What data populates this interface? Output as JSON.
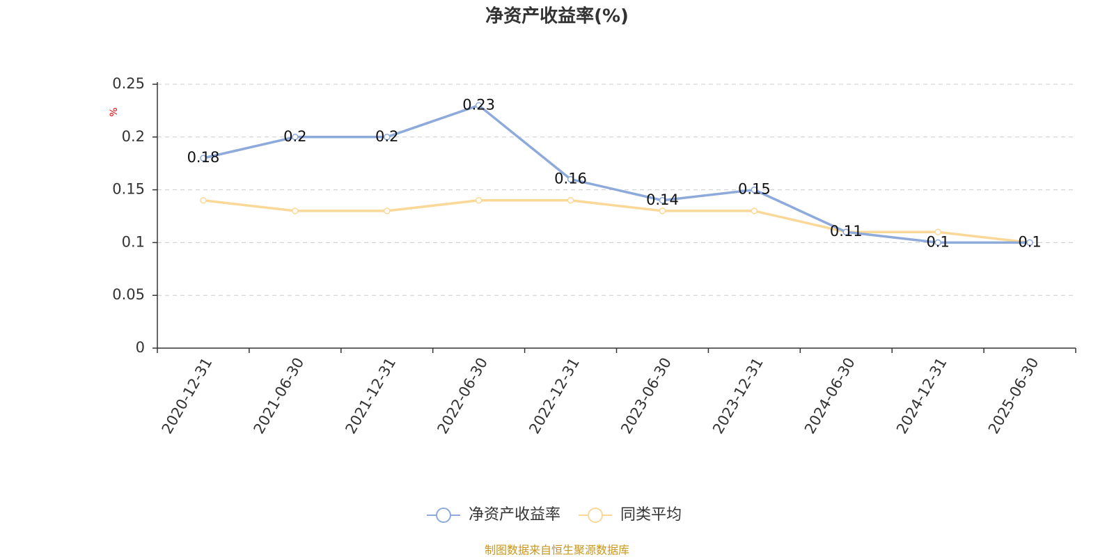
{
  "chart_data": {
    "type": "line",
    "title": "净资产收益率(%)",
    "y_unit": "%",
    "categories": [
      "2020-12-31",
      "2021-06-30",
      "2021-12-31",
      "2022-06-30",
      "2022-12-31",
      "2023-06-30",
      "2023-12-31",
      "2024-06-30",
      "2024-12-31",
      "2025-06-30"
    ],
    "series": [
      {
        "name": "净资产收益率",
        "color": "#8eaadb",
        "show_labels": true,
        "values": [
          0.18,
          0.2,
          0.2,
          0.23,
          0.16,
          0.14,
          0.15,
          0.11,
          0.1,
          0.1
        ]
      },
      {
        "name": "同类平均",
        "color": "#fad897",
        "show_labels": false,
        "values": [
          0.14,
          0.13,
          0.13,
          0.14,
          0.14,
          0.13,
          0.13,
          0.11,
          0.11,
          0.1
        ]
      }
    ],
    "ylim": [
      0,
      0.25
    ],
    "yticks": [
      0,
      0.05,
      0.1,
      0.15,
      0.2,
      0.25
    ],
    "grid": true,
    "legend": "bottom",
    "source": "制图数据来自恒生聚源数据库"
  }
}
